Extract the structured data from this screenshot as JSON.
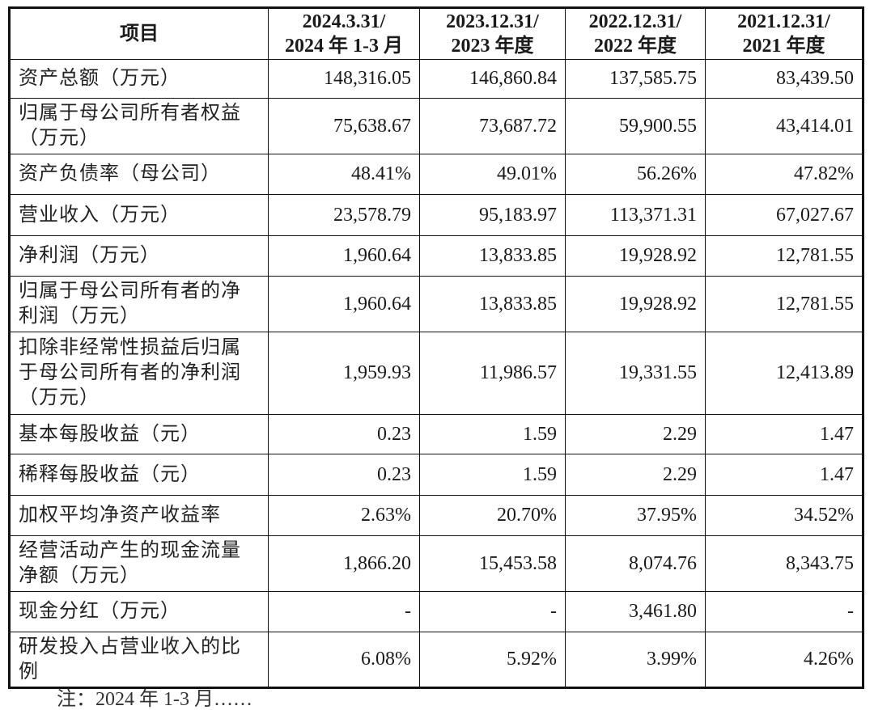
{
  "table": {
    "headers": [
      {
        "line1": "项目",
        "line2": ""
      },
      {
        "line1": "2024.3.31/",
        "line2": "2024 年 1-3 月"
      },
      {
        "line1": "2023.12.31/",
        "line2": "2023 年度"
      },
      {
        "line1": "2022.12.31/",
        "line2": "2022 年度"
      },
      {
        "line1": "2021.12.31/",
        "line2": "2021 年度"
      }
    ],
    "rows": [
      {
        "label": "资产总额（万元）",
        "values": [
          "148,316.05",
          "146,860.84",
          "137,585.75",
          "83,439.50"
        ],
        "height": 48
      },
      {
        "label": "归属于母公司所有者权益（万元）",
        "values": [
          "75,638.67",
          "73,687.72",
          "59,900.55",
          "43,414.01"
        ],
        "height": 69
      },
      {
        "label": "资产负债率（母公司）",
        "values": [
          "48.41%",
          "49.01%",
          "56.26%",
          "47.82%"
        ],
        "height": 50
      },
      {
        "label": "营业收入（万元）",
        "values": [
          "23,578.79",
          "95,183.97",
          "113,371.31",
          "67,027.67"
        ],
        "height": 51
      },
      {
        "label": "净利润（万元）",
        "values": [
          "1,960.64",
          "13,833.85",
          "19,928.92",
          "12,781.55"
        ],
        "height": 50
      },
      {
        "label": "归属于母公司所有者的净利润（万元）",
        "values": [
          "1,960.64",
          "13,833.85",
          "19,928.92",
          "12,781.55"
        ],
        "height": 69
      },
      {
        "label": "扣除非经常性损益后归属于母公司所有者的净利润（万元）",
        "values": [
          "1,959.93",
          "11,986.57",
          "19,331.55",
          "12,413.89"
        ],
        "height": 102
      },
      {
        "label": "基本每股收益（元）",
        "values": [
          "0.23",
          "1.59",
          "2.29",
          "1.47"
        ],
        "height": 49
      },
      {
        "label": "稀释每股收益（元）",
        "values": [
          "0.23",
          "1.59",
          "2.29",
          "1.47"
        ],
        "height": 51
      },
      {
        "label": "加权平均净资产收益率",
        "values": [
          "2.63%",
          "20.70%",
          "37.95%",
          "34.52%"
        ],
        "height": 50
      },
      {
        "label": "经营活动产生的现金流量净额（万元）",
        "values": [
          "1,866.20",
          "15,453.58",
          "8,074.76",
          "8,343.75"
        ],
        "height": 69
      },
      {
        "label": "现金分红（万元）",
        "values": [
          "-",
          "-",
          "3,461.80",
          "-"
        ],
        "height": 50
      },
      {
        "label": "研发投入占营业收入的比例",
        "values": [
          "6.08%",
          "5.92%",
          "3.99%",
          "4.26%"
        ],
        "height": 69
      }
    ]
  },
  "footnote": "注：2024 年 1-3 月……"
}
